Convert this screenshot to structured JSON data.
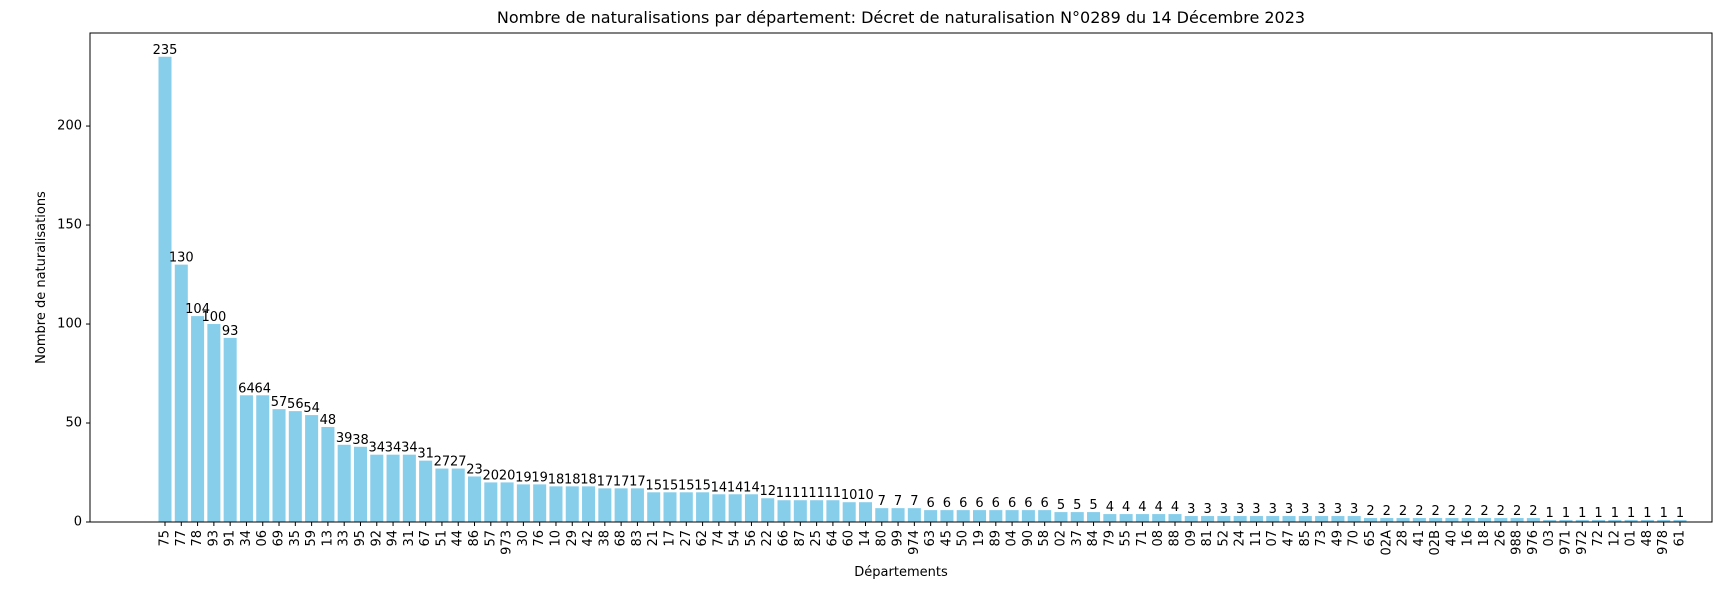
{
  "chart_data": {
    "type": "bar",
    "title": "Nombre de naturalisations par département: Décret de naturalisation N°0289 du 14 Décembre 2023",
    "xlabel": "Départements",
    "ylabel": "Nombre de naturalisations",
    "ylim": [
      0,
      247
    ],
    "yticks": [
      0,
      50,
      100,
      150,
      200
    ],
    "bar_color": "#87CEEB",
    "grid": false,
    "categories": [
      "75",
      "77",
      "78",
      "93",
      "91",
      "34",
      "06",
      "69",
      "35",
      "59",
      "13",
      "33",
      "95",
      "92",
      "94",
      "31",
      "67",
      "51",
      "44",
      "86",
      "57",
      "973",
      "30",
      "76",
      "10",
      "29",
      "42",
      "38",
      "68",
      "83",
      "21",
      "17",
      "27",
      "62",
      "74",
      "54",
      "56",
      "22",
      "66",
      "87",
      "25",
      "64",
      "60",
      "14",
      "80",
      "99",
      "974",
      "63",
      "45",
      "50",
      "19",
      "89",
      "04",
      "90",
      "58",
      "02",
      "37",
      "84",
      "79",
      "55",
      "71",
      "08",
      "88",
      "09",
      "81",
      "52",
      "24",
      "11",
      "07",
      "47",
      "85",
      "73",
      "49",
      "70",
      "65",
      "02A",
      "28",
      "41",
      "02B",
      "40",
      "16",
      "18",
      "26",
      "988",
      "976",
      "03",
      "971",
      "972",
      "72",
      "12",
      "01",
      "48",
      "978",
      "61"
    ],
    "values": [
      235,
      130,
      104,
      100,
      93,
      64,
      64,
      57,
      56,
      54,
      48,
      39,
      38,
      34,
      34,
      34,
      31,
      27,
      27,
      23,
      20,
      20,
      19,
      19,
      18,
      18,
      18,
      17,
      17,
      17,
      15,
      15,
      15,
      15,
      14,
      14,
      14,
      12,
      11,
      11,
      11,
      11,
      10,
      10,
      7,
      7,
      7,
      6,
      6,
      6,
      6,
      6,
      6,
      6,
      6,
      5,
      5,
      5,
      4,
      4,
      4,
      4,
      4,
      3,
      3,
      3,
      3,
      3,
      3,
      3,
      3,
      3,
      3,
      3,
      2,
      2,
      2,
      2,
      2,
      2,
      2,
      2,
      2,
      2,
      2,
      1,
      1,
      1,
      1,
      1,
      1,
      1,
      1,
      1
    ]
  }
}
